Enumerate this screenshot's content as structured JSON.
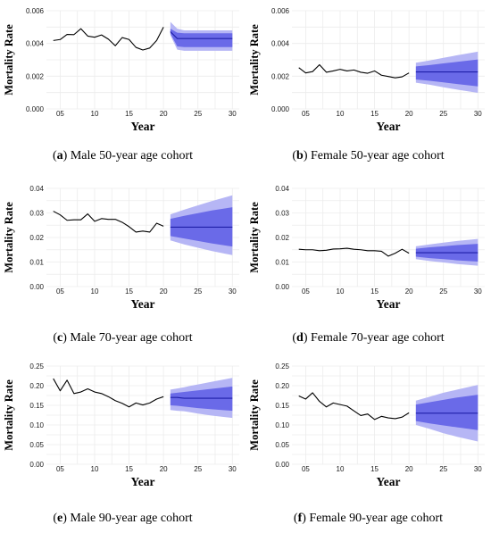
{
  "figure": {
    "panels": [
      {
        "id": "a",
        "caption": {
          "letter": "a",
          "text": "Male 50-year age cohort"
        },
        "chart_data": {
          "type": "line",
          "xlabel": "Year",
          "ylabel": "Mortality Rate",
          "xlim": [
            3,
            31
          ],
          "ylim": [
            0,
            0.006
          ],
          "xticks": [
            "05",
            "10",
            "15",
            "20",
            "25",
            "30"
          ],
          "yticks": [
            "0.000",
            "0.002",
            "0.004",
            "0.006"
          ],
          "grid": true,
          "series": [
            {
              "role": "observed",
              "x": [
                4,
                5,
                6,
                7,
                8,
                9,
                10,
                11,
                12,
                13,
                14,
                15,
                16,
                17,
                18,
                19,
                20
              ],
              "y": [
                0.00418,
                0.00424,
                0.00455,
                0.00454,
                0.0049,
                0.00445,
                0.00438,
                0.00452,
                0.00426,
                0.00386,
                0.00436,
                0.00424,
                0.00376,
                0.0036,
                0.00372,
                0.00418,
                0.005
              ]
            },
            {
              "role": "forecast-median",
              "x": [
                21,
                22,
                23,
                25,
                30
              ],
              "y": [
                0.00472,
                0.0043,
                0.0043,
                0.0043,
                0.0043
              ]
            },
            {
              "role": "forecast-band-outer",
              "x": [
                21,
                22,
                23,
                25,
                30
              ],
              "lower": [
                0.0045,
                0.00362,
                0.00355,
                0.00355,
                0.00355
              ],
              "upper": [
                0.00532,
                0.0049,
                0.0048,
                0.0048,
                0.0048
              ]
            },
            {
              "role": "forecast-band-inner",
              "x": [
                21,
                22,
                23,
                25,
                30
              ],
              "lower": [
                0.0046,
                0.00382,
                0.00378,
                0.00378,
                0.00378
              ],
              "upper": [
                0.0049,
                0.00466,
                0.00462,
                0.00462,
                0.00462
              ]
            }
          ],
          "colors": {
            "observed": "#000000",
            "median": "#1f1fa8",
            "band_outer": "#b6b6f5",
            "band_inner": "#6a6ae8"
          }
        }
      },
      {
        "id": "b",
        "caption": {
          "letter": "b",
          "text": "Female 50-year age cohort"
        },
        "chart_data": {
          "type": "line",
          "xlabel": "Year",
          "ylabel": "Mortality Rate",
          "xlim": [
            3,
            31
          ],
          "ylim": [
            0,
            0.006
          ],
          "xticks": [
            "05",
            "10",
            "15",
            "20",
            "25",
            "30"
          ],
          "yticks": [
            "0.000",
            "0.002",
            "0.004",
            "0.006"
          ],
          "grid": true,
          "series": [
            {
              "role": "observed",
              "x": [
                4,
                5,
                6,
                7,
                8,
                9,
                10,
                11,
                12,
                13,
                14,
                15,
                16,
                17,
                18,
                19,
                20
              ],
              "y": [
                0.00252,
                0.0022,
                0.00228,
                0.0027,
                0.00224,
                0.00232,
                0.00242,
                0.00232,
                0.00238,
                0.00224,
                0.00218,
                0.00232,
                0.00206,
                0.00198,
                0.0019,
                0.00196,
                0.0022
              ]
            },
            {
              "role": "forecast-median",
              "x": [
                21,
                25,
                30
              ],
              "y": [
                0.00226,
                0.00226,
                0.00226
              ]
            },
            {
              "role": "forecast-band-outer",
              "x": [
                21,
                23,
                25,
                27,
                30
              ],
              "lower": [
                0.0016,
                0.00148,
                0.00132,
                0.00118,
                0.00098
              ],
              "upper": [
                0.00282,
                0.00296,
                0.00312,
                0.00328,
                0.0035
              ]
            },
            {
              "role": "forecast-band-inner",
              "x": [
                21,
                23,
                25,
                27,
                30
              ],
              "lower": [
                0.0018,
                0.00172,
                0.00162,
                0.00152,
                0.00138
              ],
              "upper": [
                0.0026,
                0.00268,
                0.00278,
                0.00288,
                0.00302
              ]
            }
          ],
          "colors": {
            "observed": "#000000",
            "median": "#1f1fa8",
            "band_outer": "#b6b6f5",
            "band_inner": "#6a6ae8"
          }
        }
      },
      {
        "id": "c",
        "caption": {
          "letter": "c",
          "text": "Male 70-year age cohort"
        },
        "chart_data": {
          "type": "line",
          "xlabel": "Year",
          "ylabel": "Mortality Rate",
          "xlim": [
            3,
            31
          ],
          "ylim": [
            0,
            0.04
          ],
          "xticks": [
            "05",
            "10",
            "15",
            "20",
            "25",
            "30"
          ],
          "yticks": [
            "0.00",
            "0.01",
            "0.02",
            "0.03",
            "0.04"
          ],
          "grid": true,
          "series": [
            {
              "role": "observed",
              "x": [
                4,
                5,
                6,
                7,
                8,
                9,
                10,
                11,
                12,
                13,
                14,
                15,
                16,
                17,
                18,
                19,
                20
              ],
              "y": [
                0.0307,
                0.0292,
                0.027,
                0.0272,
                0.0272,
                0.0296,
                0.0266,
                0.0277,
                0.0274,
                0.0274,
                0.0262,
                0.0244,
                0.0222,
                0.0226,
                0.0222,
                0.0258,
                0.0246
              ]
            },
            {
              "role": "forecast-median",
              "x": [
                21,
                25,
                30
              ],
              "y": [
                0.0242,
                0.0242,
                0.0242
              ]
            },
            {
              "role": "forecast-band-outer",
              "x": [
                21,
                23,
                25,
                27,
                30
              ],
              "lower": [
                0.0188,
                0.0172,
                0.0158,
                0.0145,
                0.0128
              ],
              "upper": [
                0.0294,
                0.0313,
                0.0331,
                0.0348,
                0.0372
              ]
            },
            {
              "role": "forecast-band-inner",
              "x": [
                21,
                23,
                25,
                27,
                30
              ],
              "lower": [
                0.0206,
                0.0196,
                0.0186,
                0.0176,
                0.0163
              ],
              "upper": [
                0.0276,
                0.0288,
                0.0299,
                0.031,
                0.0323
              ]
            }
          ],
          "colors": {
            "observed": "#000000",
            "median": "#1f1fa8",
            "band_outer": "#b6b6f5",
            "band_inner": "#6a6ae8"
          }
        }
      },
      {
        "id": "d",
        "caption": {
          "letter": "d",
          "text": "Female 70-year age cohort"
        },
        "chart_data": {
          "type": "line",
          "xlabel": "Year",
          "ylabel": "Mortality Rate",
          "xlim": [
            3,
            31
          ],
          "ylim": [
            0,
            0.04
          ],
          "xticks": [
            "05",
            "10",
            "15",
            "20",
            "25",
            "30"
          ],
          "yticks": [
            "0.00",
            "0.01",
            "0.02",
            "0.03",
            "0.04"
          ],
          "grid": true,
          "series": [
            {
              "role": "observed",
              "x": [
                4,
                5,
                6,
                7,
                8,
                9,
                10,
                11,
                12,
                13,
                14,
                15,
                16,
                17,
                18,
                19,
                20
              ],
              "y": [
                0.0152,
                0.015,
                0.015,
                0.0146,
                0.0148,
                0.0153,
                0.0154,
                0.0156,
                0.0152,
                0.015,
                0.0146,
                0.0146,
                0.0144,
                0.0124,
                0.0136,
                0.0152,
                0.0136
              ]
            },
            {
              "role": "forecast-median",
              "x": [
                21,
                25,
                30
              ],
              "y": [
                0.0138,
                0.0138,
                0.0138
              ]
            },
            {
              "role": "forecast-band-outer",
              "x": [
                21,
                23,
                25,
                27,
                30
              ],
              "lower": [
                0.0112,
                0.0104,
                0.0098,
                0.0092,
                0.0085
              ],
              "upper": [
                0.0164,
                0.0172,
                0.0179,
                0.0186,
                0.0194
              ]
            },
            {
              "role": "forecast-band-inner",
              "x": [
                21,
                23,
                25,
                27,
                30
              ],
              "lower": [
                0.0122,
                0.0116,
                0.0112,
                0.0107,
                0.0102
              ],
              "upper": [
                0.0154,
                0.016,
                0.0164,
                0.0169,
                0.0174
              ]
            }
          ],
          "colors": {
            "observed": "#000000",
            "median": "#1f1fa8",
            "band_outer": "#b6b6f5",
            "band_inner": "#6a6ae8"
          }
        }
      },
      {
        "id": "e",
        "caption": {
          "letter": "e",
          "text": "Male 90-year age cohort"
        },
        "chart_data": {
          "type": "line",
          "xlabel": "Year",
          "ylabel": "Mortality Rate",
          "xlim": [
            3,
            31
          ],
          "ylim": [
            0,
            0.25
          ],
          "xticks": [
            "05",
            "10",
            "15",
            "20",
            "25",
            "30"
          ],
          "yticks": [
            "0.00",
            "0.05",
            "0.10",
            "0.15",
            "0.20",
            "0.25"
          ],
          "grid": true,
          "series": [
            {
              "role": "observed",
              "x": [
                4,
                5,
                6,
                7,
                8,
                9,
                10,
                11,
                12,
                13,
                14,
                15,
                16,
                17,
                18,
                19,
                20
              ],
              "y": [
                0.218,
                0.187,
                0.214,
                0.18,
                0.184,
                0.192,
                0.184,
                0.18,
                0.172,
                0.162,
                0.155,
                0.146,
                0.156,
                0.151,
                0.156,
                0.166,
                0.172
              ]
            },
            {
              "role": "forecast-median",
              "x": [
                21,
                22,
                23,
                25,
                30
              ],
              "y": [
                0.17,
                0.17,
                0.168,
                0.168,
                0.168
              ]
            },
            {
              "role": "forecast-band-outer",
              "x": [
                21,
                22,
                23,
                24,
                25,
                27,
                30
              ],
              "lower": [
                0.138,
                0.136,
                0.135,
                0.132,
                0.129,
                0.124,
                0.118
              ],
              "upper": [
                0.19,
                0.193,
                0.196,
                0.2,
                0.203,
                0.21,
                0.22
              ]
            },
            {
              "role": "forecast-band-inner",
              "x": [
                21,
                22,
                23,
                24,
                25,
                27,
                30
              ],
              "lower": [
                0.15,
                0.149,
                0.147,
                0.145,
                0.143,
                0.14,
                0.136
              ],
              "upper": [
                0.18,
                0.182,
                0.184,
                0.186,
                0.188,
                0.192,
                0.198
              ]
            }
          ],
          "colors": {
            "observed": "#000000",
            "median": "#1f1fa8",
            "band_outer": "#b6b6f5",
            "band_inner": "#6a6ae8"
          }
        }
      },
      {
        "id": "f",
        "caption": {
          "letter": "f",
          "text": "Female 90-year age cohort"
        },
        "chart_data": {
          "type": "line",
          "xlabel": "Year",
          "ylabel": "Mortality Rate",
          "xlim": [
            3,
            31
          ],
          "ylim": [
            0,
            0.25
          ],
          "xticks": [
            "05",
            "10",
            "15",
            "20",
            "25",
            "30"
          ],
          "yticks": [
            "0.00",
            "0.05",
            "0.10",
            "0.15",
            "0.20",
            "0.25"
          ],
          "grid": true,
          "series": [
            {
              "role": "observed",
              "x": [
                4,
                5,
                6,
                7,
                8,
                9,
                10,
                11,
                12,
                13,
                14,
                15,
                16,
                17,
                18,
                19,
                20
              ],
              "y": [
                0.174,
                0.166,
                0.182,
                0.16,
                0.146,
                0.156,
                0.152,
                0.148,
                0.136,
                0.124,
                0.128,
                0.114,
                0.122,
                0.118,
                0.116,
                0.12,
                0.131
              ]
            },
            {
              "role": "forecast-median",
              "x": [
                21,
                25,
                30
              ],
              "y": [
                0.13,
                0.13,
                0.13
              ]
            },
            {
              "role": "forecast-band-outer",
              "x": [
                21,
                23,
                25,
                27,
                30
              ],
              "lower": [
                0.1,
                0.09,
                0.079,
                0.07,
                0.058
              ],
              "upper": [
                0.162,
                0.172,
                0.182,
                0.19,
                0.202
              ]
            },
            {
              "role": "forecast-band-inner",
              "x": [
                21,
                23,
                25,
                27,
                30
              ],
              "lower": [
                0.11,
                0.104,
                0.099,
                0.094,
                0.087
              ],
              "upper": [
                0.152,
                0.158,
                0.164,
                0.17,
                0.177
              ]
            }
          ],
          "colors": {
            "observed": "#000000",
            "median": "#1f1fa8",
            "band_outer": "#b6b6f5",
            "band_inner": "#6a6ae8"
          }
        }
      }
    ]
  }
}
